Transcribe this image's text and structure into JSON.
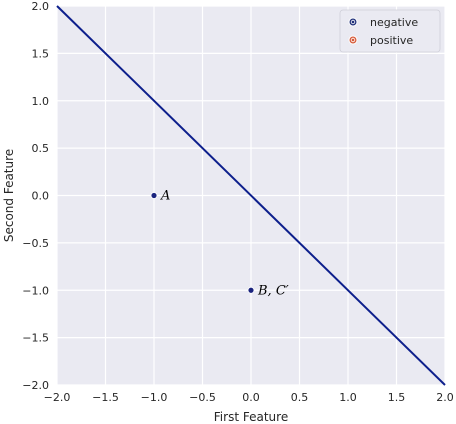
{
  "chart_data": {
    "type": "scatter",
    "title": "",
    "xlabel": "First Feature",
    "ylabel": "Second Feature",
    "xlim": [
      -2.0,
      2.0
    ],
    "ylim": [
      -2.0,
      2.0
    ],
    "x_ticks": [
      -2.0,
      -1.5,
      -1.0,
      -0.5,
      0.0,
      0.5,
      1.0,
      1.5,
      2.0
    ],
    "y_ticks": [
      -2.0,
      -1.5,
      -1.0,
      -0.5,
      0.0,
      0.5,
      1.0,
      1.5,
      2.0
    ],
    "x_tick_labels": [
      "−2.0",
      "−1.5",
      "−1.0",
      "−0.5",
      "0.0",
      "0.5",
      "1.0",
      "1.5",
      "2.0"
    ],
    "y_tick_labels": [
      "−2.0",
      "−1.5",
      "−1.0",
      "−0.5",
      "0.0",
      "0.5",
      "1.0",
      "1.5",
      "2.0"
    ],
    "grid": true,
    "legend_position": "top-right",
    "legend": [
      {
        "label": "negative",
        "color": "#1f2f7a"
      },
      {
        "label": "positive",
        "color": "#d65a3a"
      }
    ],
    "series": [
      {
        "name": "negative",
        "color": "#1a237e",
        "points": [
          {
            "x": -1.0,
            "y": 0.0,
            "label": "A"
          },
          {
            "x": 0.0,
            "y": -1.0,
            "label": "B, C′"
          }
        ]
      },
      {
        "name": "positive",
        "color": "#d65a3a",
        "points": []
      }
    ],
    "lines": [
      {
        "x": [
          -2.0,
          2.0
        ],
        "y": [
          2.0,
          -2.0
        ],
        "color": "#0d1f8c"
      }
    ]
  }
}
